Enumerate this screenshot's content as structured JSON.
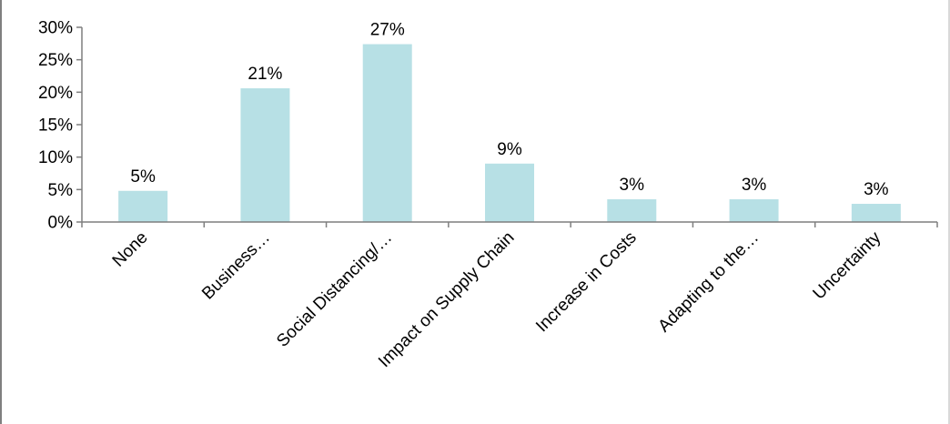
{
  "chart_data": {
    "type": "bar",
    "title": "",
    "xlabel": "",
    "ylabel": "",
    "categories": [
      "None",
      "Business…",
      "Social Distancing/…",
      "Impact on Supply Chain",
      "Increase in Costs",
      "Adapting to the…",
      "Uncertainty"
    ],
    "values": [
      4.8,
      20.6,
      27.4,
      9.0,
      3.5,
      3.5,
      2.8
    ],
    "data_labels": [
      "5%",
      "21%",
      "27%",
      "9%",
      "3%",
      "3%",
      "3%"
    ],
    "ylim": [
      0,
      30
    ],
    "yticks": [
      0,
      5,
      10,
      15,
      20,
      25,
      30
    ],
    "ytick_labels": [
      "0%",
      "5%",
      "10%",
      "15%",
      "20%",
      "25%",
      "30%"
    ],
    "unit": "%",
    "bar_color": "#b7e0e5",
    "axis_color": "#7f7f7f",
    "grid": false,
    "legend": "none"
  }
}
